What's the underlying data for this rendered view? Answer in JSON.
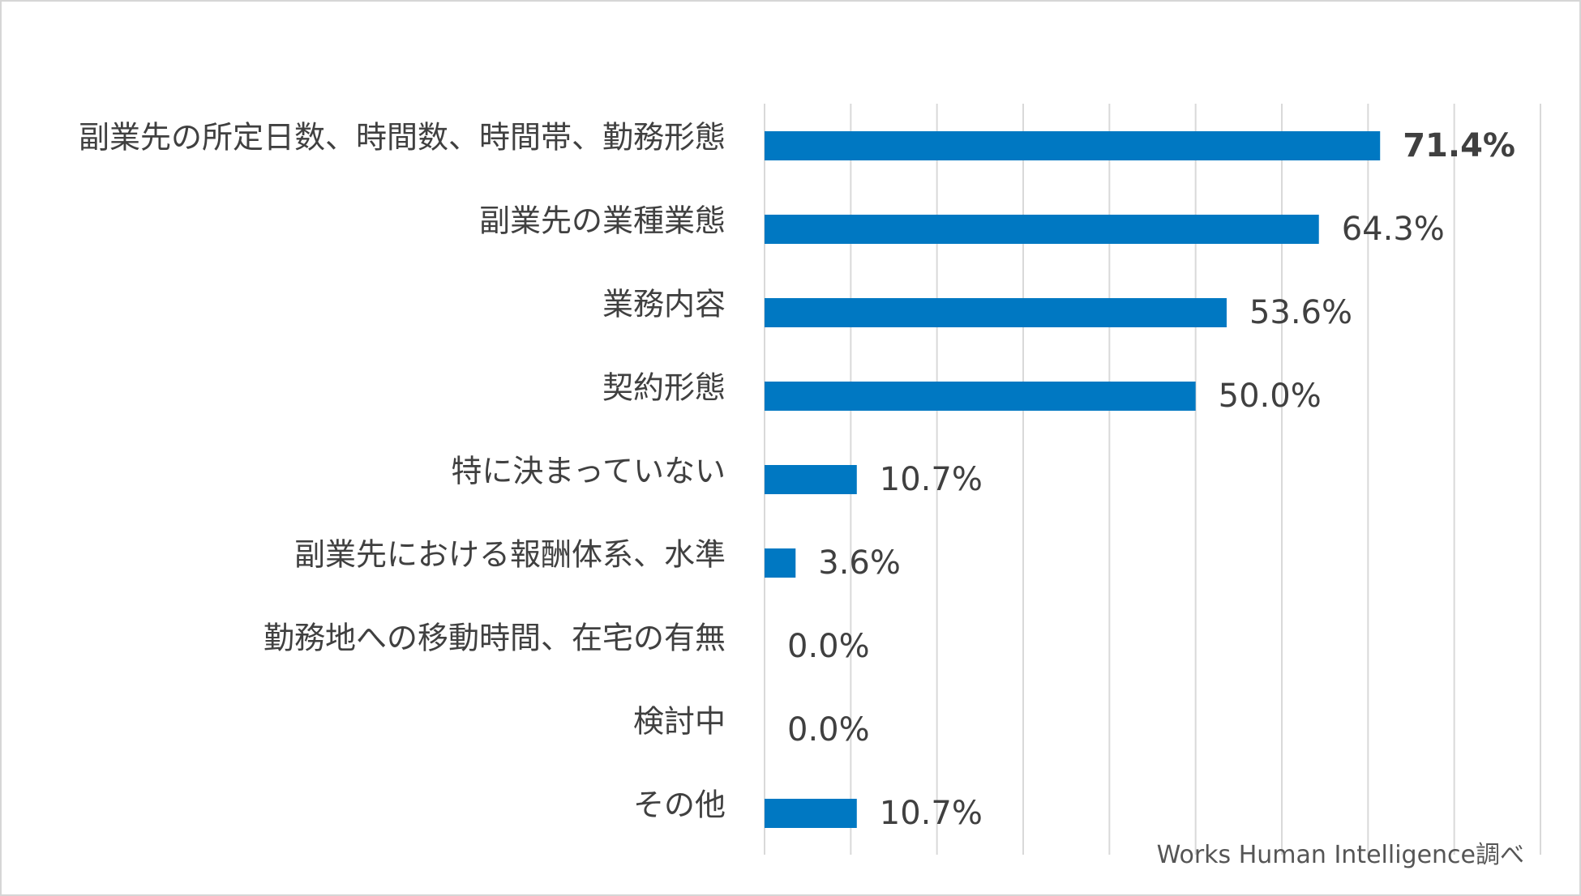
{
  "chart_data": {
    "type": "bar",
    "orientation": "horizontal",
    "categories": [
      "副業先の所定日数、時間数、時間帯、勤務形態",
      "副業先の業種業態",
      "業務内容",
      "契約形態",
      "特に決まっていない",
      "副業先における報酬体系、水準",
      "勤務地への移動時間、在宅の有無",
      "検討中",
      "その他"
    ],
    "values": [
      71.4,
      64.3,
      53.6,
      50.0,
      10.7,
      3.6,
      0.0,
      0.0,
      10.7
    ],
    "value_labels": [
      "71.4%",
      "64.3%",
      "53.6%",
      "50.0%",
      "10.7%",
      "3.6%",
      "0.0%",
      "0.0%",
      "10.7%"
    ],
    "xlim": [
      0,
      90
    ],
    "grid": true,
    "bar_color": "#0078c2",
    "highlight_index": 0
  },
  "source_note": "Works Human Intelligence調べ"
}
